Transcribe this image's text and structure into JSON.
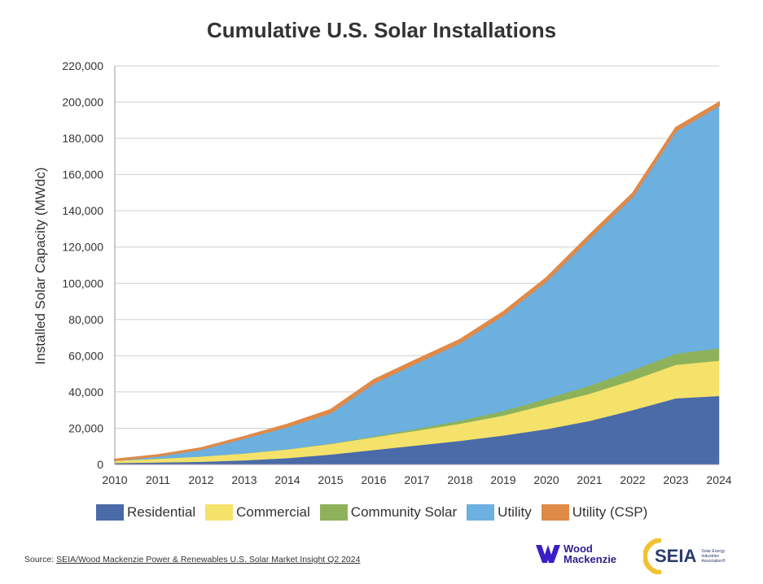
{
  "chart_data": {
    "type": "area",
    "stacked": true,
    "title": "Cumulative U.S. Solar Installations",
    "ylabel": "Installed Solar Capacity (MWdc)",
    "xlabel": "",
    "x": [
      2010,
      2011,
      2012,
      2013,
      2014,
      2015,
      2016,
      2017,
      2018,
      2019,
      2020,
      2021,
      2022,
      2023,
      2024
    ],
    "ylim": [
      0,
      220000
    ],
    "yticks": [
      "0",
      "20,000",
      "40,000",
      "60,000",
      "80,000",
      "100,000",
      "120,000",
      "140,000",
      "160,000",
      "180,000",
      "200,000",
      "220,000"
    ],
    "ytick_values": [
      0,
      20000,
      40000,
      60000,
      80000,
      100000,
      120000,
      140000,
      160000,
      180000,
      200000,
      220000
    ],
    "xticks": [
      "2010",
      "2011",
      "2012",
      "2013",
      "2014",
      "2015",
      "2016",
      "2017",
      "2018",
      "2019",
      "2020",
      "2021",
      "2022",
      "2023",
      "2024"
    ],
    "grid": "horizontal",
    "legend_position": "bottom",
    "series": [
      {
        "name": "Residential",
        "color": "#4a6aa8",
        "values": [
          800,
          1100,
          1500,
          2300,
          3500,
          5500,
          8000,
          10500,
          13000,
          16000,
          19500,
          24000,
          30000,
          36500,
          37800
        ]
      },
      {
        "name": "Commercial",
        "color": "#f4e26b",
        "values": [
          1300,
          2100,
          2900,
          3800,
          4800,
          5800,
          7000,
          8200,
          9500,
          11000,
          13500,
          15000,
          16500,
          18500,
          19500
        ]
      },
      {
        "name": "Community Solar",
        "color": "#8db25a",
        "values": [
          0,
          0,
          0,
          50,
          100,
          200,
          500,
          1000,
          1700,
          2500,
          3300,
          4500,
          5500,
          6200,
          6800
        ]
      },
      {
        "name": "Utility",
        "color": "#6cb0e0",
        "values": [
          200,
          1500,
          4100,
          8500,
          12500,
          17000,
          29500,
          36500,
          43000,
          53000,
          65000,
          81500,
          96000,
          123000,
          134000
        ]
      },
      {
        "name": "Utility (CSP)",
        "color": "#e08a48",
        "values": [
          450,
          500,
          550,
          700,
          1200,
          1650,
          1700,
          1700,
          1700,
          1700,
          1700,
          1700,
          1700,
          1700,
          1700
        ]
      }
    ]
  },
  "legend": {
    "items": [
      {
        "label": "Residential",
        "color": "#4a6aa8"
      },
      {
        "label": "Commercial",
        "color": "#f4e26b"
      },
      {
        "label": "Community Solar",
        "color": "#8db25a"
      },
      {
        "label": "Utility",
        "color": "#6cb0e0"
      },
      {
        "label": "Utility (CSP)",
        "color": "#e08a48"
      }
    ]
  },
  "source": {
    "prefix": "Source: ",
    "link_text": "SEIA/Wood Mackenzie Power & Renewables U.S. Solar Market Insight Q2 2024"
  },
  "logos": {
    "wm_line1": "Wood",
    "wm_line2": "Mackenzie",
    "seia": "SEIA",
    "seia_sub": "Solar Energy Industries Association®"
  }
}
